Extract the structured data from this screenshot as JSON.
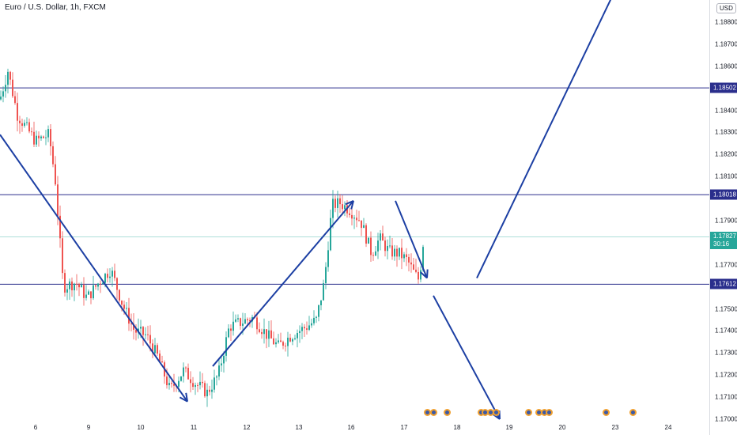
{
  "header": {
    "title": "Euro / U.S. Dollar, 1h, FXCM"
  },
  "axis": {
    "currency": "USD",
    "ticks": [
      "1.18800",
      "1.18700",
      "1.18600",
      "1.18400",
      "1.18300",
      "1.18200",
      "1.18100",
      "1.17900",
      "1.17700",
      "1.17500",
      "1.17400",
      "1.17300",
      "1.17200",
      "1.17100",
      "1.17000"
    ],
    "x_labels": [
      "6",
      "9",
      "10",
      "11",
      "12",
      "13",
      "16",
      "17",
      "18",
      "19",
      "20",
      "23",
      "24"
    ]
  },
  "levels": [
    {
      "label": "1.18502",
      "price": 1.18502
    },
    {
      "label": "1.18018",
      "price": 1.18018
    },
    {
      "label": "1.17612",
      "price": 1.17612
    }
  ],
  "current": {
    "price_label": "1.17827",
    "timer_label": "30:16",
    "price": 1.17827
  },
  "colors": {
    "up": "#26a69a",
    "down": "#ef5350",
    "level": "#2a2e8c",
    "arrow": "#1c3fa3",
    "current_line": "#26a69a"
  },
  "chart_data": {
    "type": "candlestick",
    "symbol": "Euro / U.S. Dollar",
    "interval": "1h",
    "source": "FXCM",
    "y_range": [
      1.17,
      1.189
    ],
    "x_labels": [
      "6",
      "9",
      "10",
      "11",
      "12",
      "13",
      "16",
      "17",
      "18",
      "19",
      "20",
      "23",
      "24"
    ],
    "close_path": [
      [
        0,
        1.1845
      ],
      [
        10,
        1.1858
      ],
      [
        22,
        1.1838
      ],
      [
        45,
        1.1826
      ],
      [
        62,
        1.1829
      ],
      [
        70,
        1.1808
      ],
      [
        80,
        1.176
      ],
      [
        96,
        1.1762
      ],
      [
        110,
        1.1755
      ],
      [
        125,
        1.1762
      ],
      [
        140,
        1.1768
      ],
      [
        155,
        1.1752
      ],
      [
        170,
        1.174
      ],
      [
        185,
        1.1738
      ],
      [
        200,
        1.1728
      ],
      [
        215,
        1.1713
      ],
      [
        232,
        1.1722
      ],
      [
        248,
        1.1716
      ],
      [
        262,
        1.1712
      ],
      [
        276,
        1.172
      ],
      [
        290,
        1.1742
      ],
      [
        305,
        1.1744
      ],
      [
        320,
        1.1746
      ],
      [
        338,
        1.1738
      ],
      [
        352,
        1.1733
      ],
      [
        368,
        1.1738
      ],
      [
        388,
        1.1742
      ],
      [
        400,
        1.1745
      ],
      [
        410,
        1.1762
      ],
      [
        420,
        1.1797
      ],
      [
        430,
        1.1798
      ],
      [
        442,
        1.1795
      ],
      [
        456,
        1.179
      ],
      [
        470,
        1.1775
      ],
      [
        480,
        1.1782
      ],
      [
        492,
        1.1776
      ],
      [
        505,
        1.1775
      ],
      [
        515,
        1.1772
      ],
      [
        524,
        1.1766
      ],
      [
        530,
        1.1763
      ],
      [
        536,
        1.1783
      ]
    ],
    "trend_arrows": [
      {
        "from": [
          0,
          1.1829
        ],
        "to": [
          237,
          1.1708
        ]
      },
      {
        "from": [
          269,
          1.1724
        ],
        "to": [
          447,
          1.1799
        ]
      },
      {
        "from": [
          500,
          1.1799
        ],
        "to": [
          540,
          1.1764
        ]
      },
      {
        "from": [
          548,
          1.1756
        ],
        "to": [
          632,
          1.17
        ]
      },
      {
        "from": [
          603,
          1.1764
        ],
        "to": [
          788,
          1.1902
        ]
      }
    ],
    "event_markers": [
      540,
      548,
      565,
      608,
      613,
      620,
      627,
      668,
      681,
      688,
      694,
      766,
      800
    ]
  }
}
